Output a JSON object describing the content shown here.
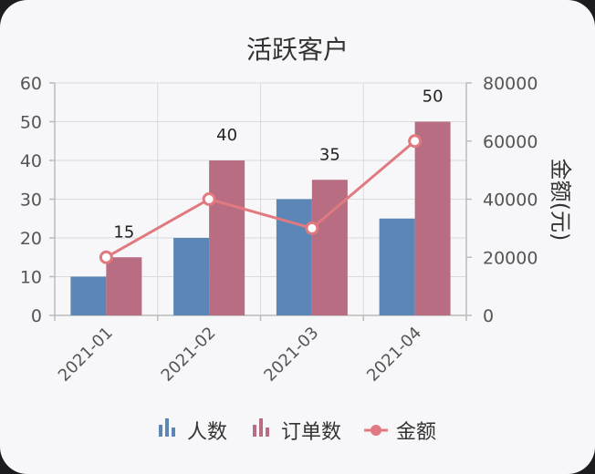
{
  "chart_data": {
    "type": "bar",
    "title": "活跃客户",
    "categories": [
      "2021-01",
      "2021-02",
      "2021-03",
      "2021-04"
    ],
    "series": [
      {
        "name": "人数",
        "type": "bar",
        "axis": "left",
        "values": [
          10,
          20,
          30,
          25
        ],
        "color": "#5b86b5",
        "show_labels": false
      },
      {
        "name": "订单数",
        "type": "bar",
        "axis": "left",
        "values": [
          15,
          40,
          35,
          50
        ],
        "color": "#b86d82",
        "show_labels": true
      },
      {
        "name": "金额",
        "type": "line",
        "axis": "right",
        "values": [
          20000,
          40000,
          30000,
          60000
        ],
        "color": "#e07a80"
      }
    ],
    "y_left": {
      "label": "",
      "range": [
        0,
        60
      ],
      "ticks": [
        0,
        10,
        20,
        30,
        40,
        50,
        60
      ]
    },
    "y_right": {
      "label": "金额(元)",
      "range": [
        0,
        80000
      ],
      "ticks": [
        0,
        20000,
        40000,
        60000,
        80000
      ]
    },
    "grid": true,
    "legend_position": "bottom"
  }
}
